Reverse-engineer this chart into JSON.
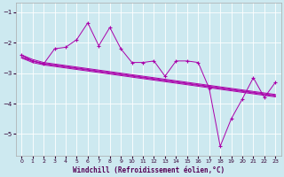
{
  "xlabel": "Windchill (Refroidissement éolien,°C)",
  "bg_color": "#cde9f0",
  "grid_color": "#ffffff",
  "line_color": "#aa00aa",
  "xlim": [
    -0.5,
    23.5
  ],
  "ylim": [
    -5.7,
    -0.7
  ],
  "yticks": [
    -5,
    -4,
    -3,
    -2,
    -1
  ],
  "xticks": [
    0,
    1,
    2,
    3,
    4,
    5,
    6,
    7,
    8,
    9,
    10,
    11,
    12,
    13,
    14,
    15,
    16,
    17,
    18,
    19,
    20,
    21,
    22,
    23
  ],
  "series": [
    {
      "y": [
        -2.4,
        -2.55,
        -2.65,
        -2.7,
        -2.75,
        -2.8,
        -2.85,
        -2.9,
        -2.95,
        -3.0,
        -3.05,
        -3.1,
        -3.15,
        -3.2,
        -3.25,
        -3.3,
        -3.35,
        -3.4,
        -3.45,
        -3.5,
        -3.55,
        -3.6,
        -3.65,
        -3.7
      ],
      "markers": false
    },
    {
      "y": [
        -2.45,
        -2.6,
        -2.68,
        -2.73,
        -2.78,
        -2.83,
        -2.88,
        -2.93,
        -2.98,
        -3.03,
        -3.08,
        -3.13,
        -3.18,
        -3.23,
        -3.28,
        -3.33,
        -3.38,
        -3.43,
        -3.48,
        -3.53,
        -3.58,
        -3.63,
        -3.68,
        -3.73
      ],
      "markers": false
    },
    {
      "y": [
        -2.5,
        -2.6,
        -2.7,
        -2.75,
        -2.8,
        -2.85,
        -2.9,
        -2.95,
        -3.0,
        -3.05,
        -3.1,
        -3.15,
        -3.2,
        -3.25,
        -3.3,
        -3.35,
        -3.4,
        -3.45,
        -3.5,
        -3.55,
        -3.6,
        -3.65,
        -3.7,
        -3.75
      ],
      "markers": false
    },
    {
      "y": [
        -2.5,
        -2.65,
        -2.73,
        -2.78,
        -2.83,
        -2.88,
        -2.93,
        -2.98,
        -3.03,
        -3.08,
        -3.13,
        -3.18,
        -3.23,
        -3.28,
        -3.33,
        -3.38,
        -3.43,
        -3.48,
        -3.53,
        -3.58,
        -3.63,
        -3.68,
        -3.73,
        -3.78
      ],
      "markers": false
    },
    {
      "y": [
        -2.4,
        -2.6,
        -2.7,
        -2.2,
        -2.15,
        -1.9,
        -1.35,
        -2.1,
        -1.5,
        -2.2,
        -2.65,
        -2.65,
        -2.6,
        -3.1,
        -2.6,
        -2.6,
        -2.65,
        -3.5,
        -5.4,
        -4.5,
        -3.85,
        -3.15,
        -3.8,
        -3.3
      ],
      "markers": true
    }
  ]
}
